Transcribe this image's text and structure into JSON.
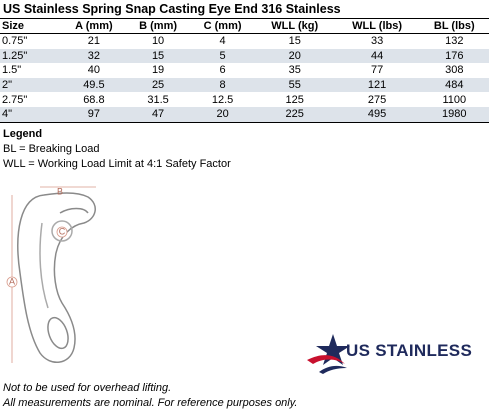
{
  "title": "US Stainless Spring Snap Casting Eye End 316 Stainless",
  "table": {
    "headers": [
      "Size",
      "A (mm)",
      "B (mm)",
      "C (mm)",
      "WLL (kg)",
      "WLL (lbs)",
      "BL (lbs)"
    ],
    "rows": [
      [
        "0.75\"",
        "21",
        "10",
        "4",
        "15",
        "33",
        "132"
      ],
      [
        "1.25\"",
        "32",
        "15",
        "5",
        "20",
        "44",
        "176"
      ],
      [
        "1.5\"",
        "40",
        "19",
        "6",
        "35",
        "77",
        "308"
      ],
      [
        "2\"",
        "49.5",
        "25",
        "8",
        "55",
        "121",
        "484"
      ],
      [
        "2.75\"",
        "68.8",
        "31.5",
        "12.5",
        "125",
        "275",
        "1100"
      ],
      [
        "4\"",
        "97",
        "47",
        "20",
        "225",
        "495",
        "1980"
      ]
    ]
  },
  "legend": {
    "title": "Legend",
    "items": [
      "BL = Breaking Load",
      "WLL = Working Load Limit at 4:1 Safety Factor"
    ]
  },
  "diagram": {
    "labels": [
      "A",
      "B",
      "C"
    ]
  },
  "logo": {
    "text": "US STAINLESS"
  },
  "notes": [
    "Not to be used for overhead lifting.",
    "All measurements are nominal. For reference purposes only."
  ]
}
